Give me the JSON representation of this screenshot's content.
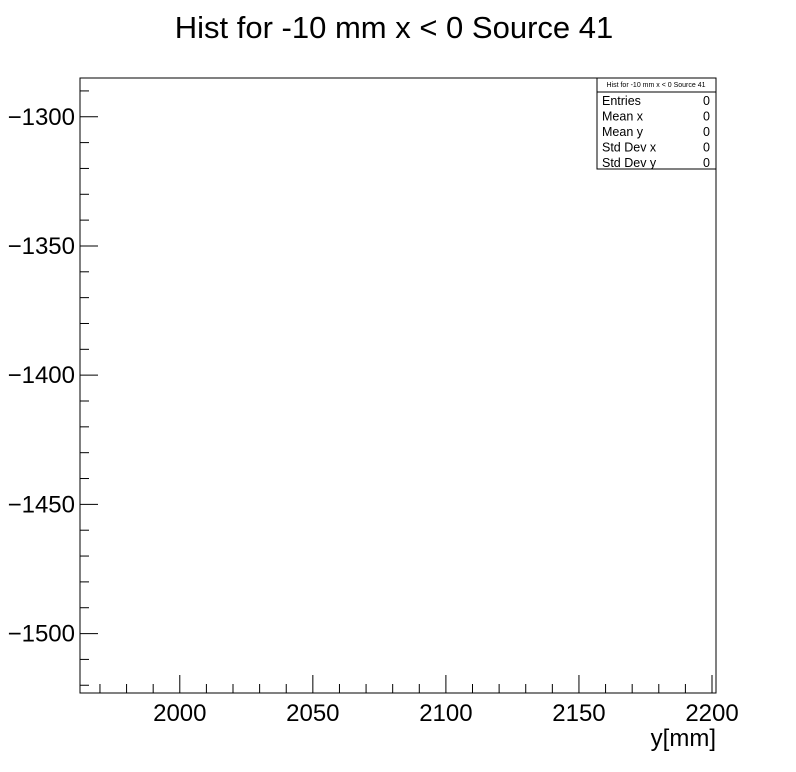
{
  "chart_data": {
    "type": "heatmap",
    "title": "Hist for -10 mm x < 0 Source 41",
    "xlabel": "y[mm]",
    "ylabel": "",
    "xlim": [
      1962.5,
      2201.5
    ],
    "ylim": [
      -1523,
      -1285
    ],
    "x_ticks": [
      2000,
      2050,
      2100,
      2150,
      2200
    ],
    "x_tick_labels": [
      "2000",
      "2050",
      "2100",
      "2150",
      "2200"
    ],
    "y_ticks": [
      -1300,
      -1350,
      -1400,
      -1450,
      -1500
    ],
    "y_tick_labels": [
      "−1300",
      "−1350",
      "−1400",
      "−1450",
      "−1500"
    ],
    "x_minor_step": 10,
    "y_minor_step": 10,
    "grid": false,
    "series": [],
    "stats_box": {
      "title": "Hist for -10 mm x < 0 Source 41",
      "placement": "top-right",
      "rows": [
        {
          "label": "Entries",
          "value": "0"
        },
        {
          "label": "Mean x",
          "value": "0"
        },
        {
          "label": "Mean y",
          "value": "0"
        },
        {
          "label": "Std Dev x",
          "value": "0"
        },
        {
          "label": "Std Dev y",
          "value": "0"
        }
      ]
    }
  }
}
